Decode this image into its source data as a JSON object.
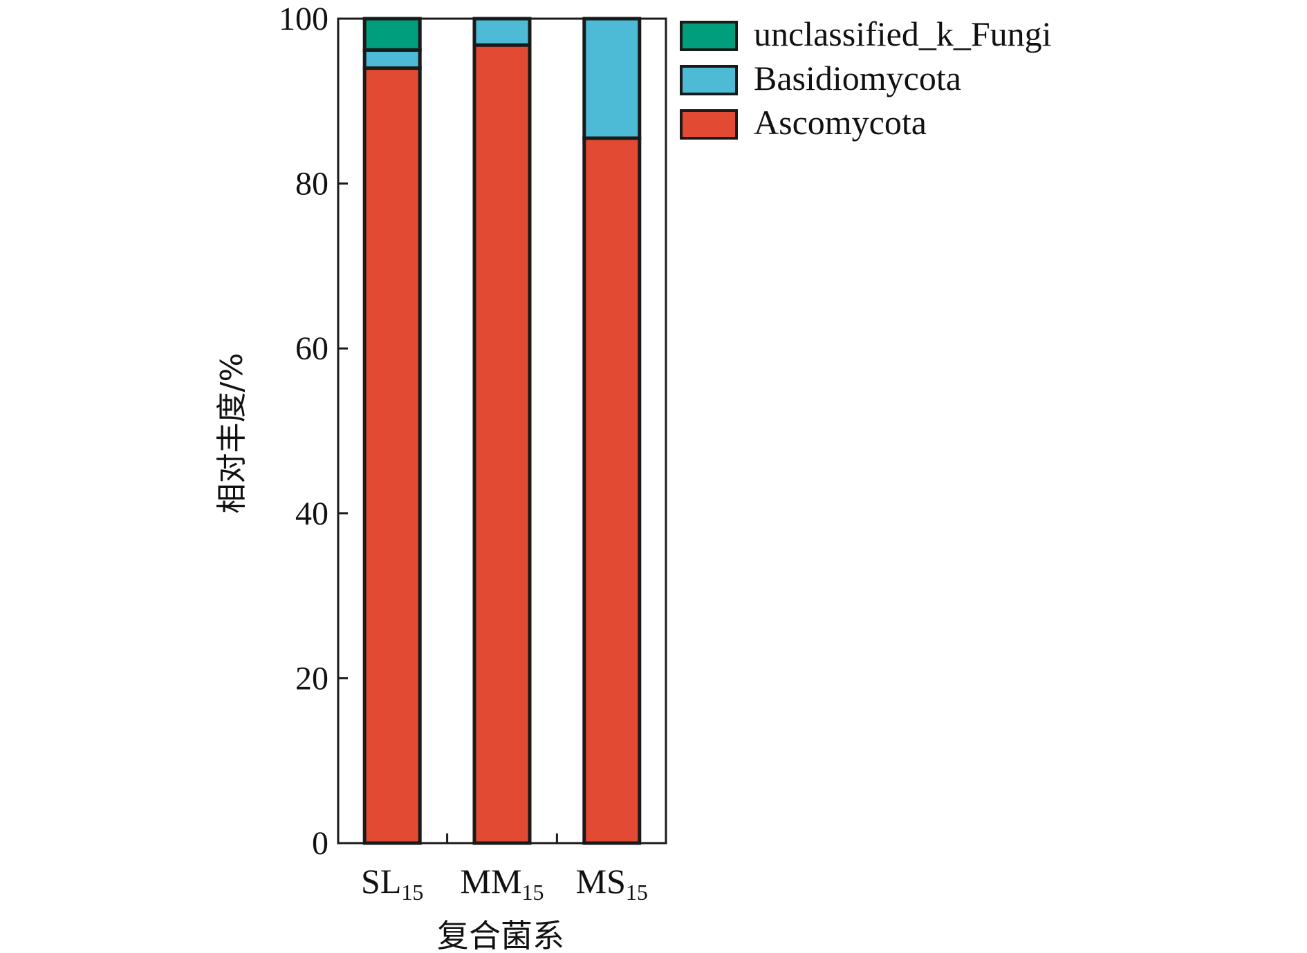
{
  "chart_data": {
    "type": "bar",
    "stacked": true,
    "categories": [
      {
        "main": "SL",
        "sub": "15"
      },
      {
        "main": "MM",
        "sub": "15"
      },
      {
        "main": "MS",
        "sub": "15"
      }
    ],
    "series": [
      {
        "name": "Ascomycota",
        "color": "#E34A33",
        "values": [
          94.0,
          96.8,
          85.5
        ]
      },
      {
        "name": "Basidiomycota",
        "color": "#4DBBD5",
        "values": [
          2.2,
          3.2,
          14.5
        ]
      },
      {
        "name": "unclassified_k_Fungi",
        "color": "#009E7D",
        "values": [
          3.8,
          0.0,
          0.0
        ]
      }
    ],
    "legend_order": [
      "unclassified_k_Fungi",
      "Basidiomycota",
      "Ascomycota"
    ],
    "legend_position": "right-top, outside plot",
    "xlabel": "复合菌系",
    "ylabel": "相对丰度/%",
    "ylim": [
      0,
      100
    ],
    "yticks": [
      "0",
      "20",
      "40",
      "60",
      "80",
      "100"
    ],
    "grid": false
  }
}
